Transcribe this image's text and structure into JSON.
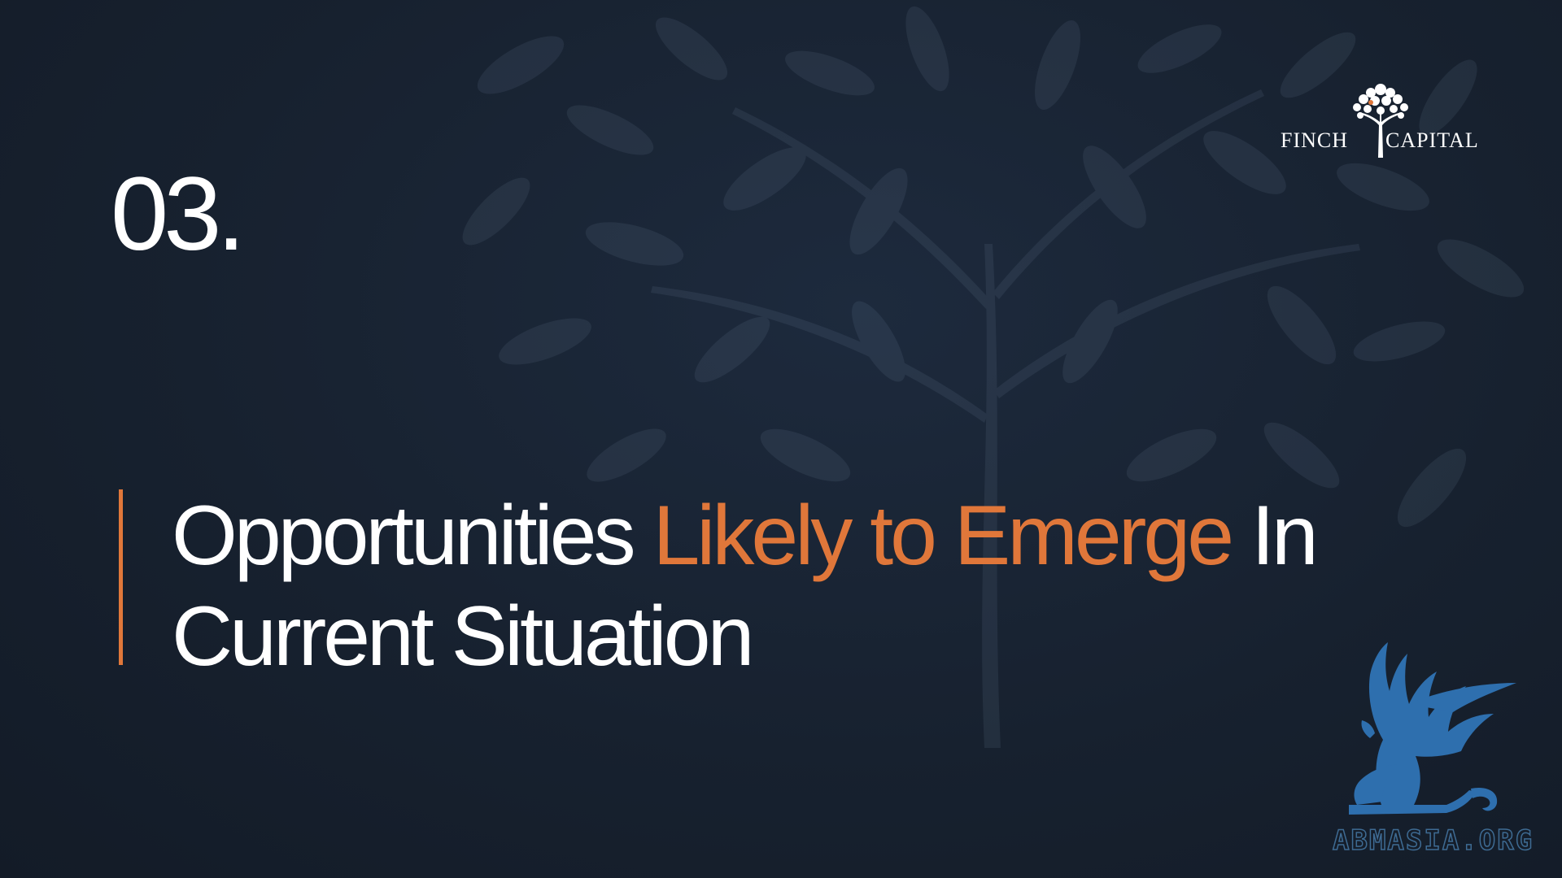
{
  "slide": {
    "section_number": "03.",
    "headline": {
      "part1": "Opportunities ",
      "highlight": "Likely to Emerge",
      "part2": " In Current Situation"
    }
  },
  "brand": {
    "name_left": "FINCH",
    "name_right": "CAPITAL",
    "logo_icon": "tree-icon"
  },
  "watermark": {
    "text": "ABMASIA.ORG",
    "icon": "griffin-icon"
  },
  "colors": {
    "background": "#17212f",
    "accent": "#e0773a",
    "text": "#ffffff",
    "watermark_blue": "#2e6fae"
  }
}
